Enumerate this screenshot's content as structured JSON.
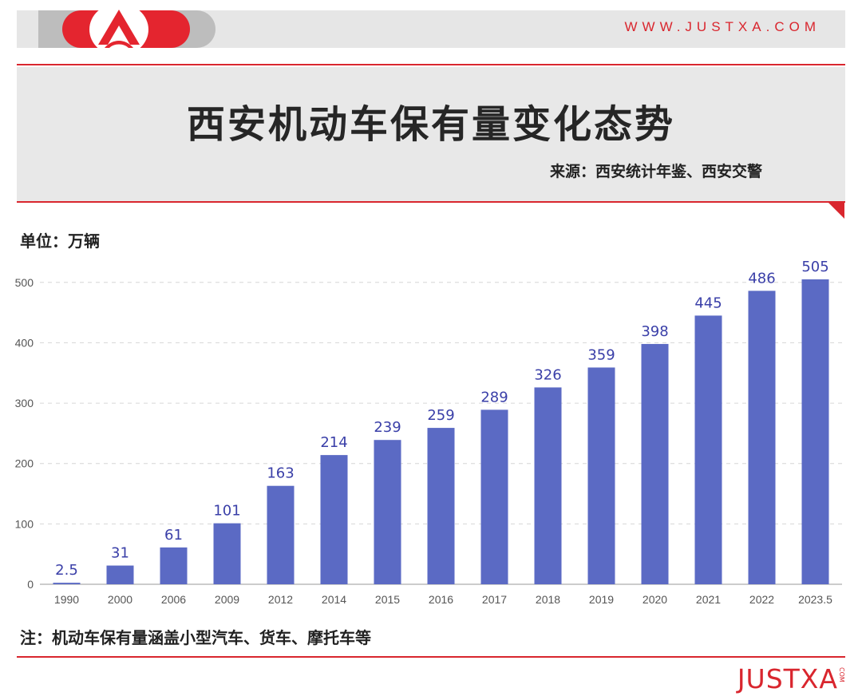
{
  "header": {
    "url": "WWW.JUSTXA.COM",
    "title": "西安机动车保有量变化态势",
    "source": "来源：西安统计年鉴、西安交警"
  },
  "unit_label": "单位：万辆",
  "note": "注：机动车保有量涵盖小型汽车、货车、摩托车等",
  "brand": {
    "name": "JUSTXA",
    "suffix": "COM"
  },
  "colors": {
    "accent": "#d9262e",
    "bar": "#5b6ac4",
    "label": "#3a3fa8"
  },
  "chart_data": {
    "type": "bar",
    "categories": [
      "1990",
      "2000",
      "2006",
      "2009",
      "2012",
      "2014",
      "2015",
      "2016",
      "2017",
      "2018",
      "2019",
      "2020",
      "2021",
      "2022",
      "2023.5"
    ],
    "values": [
      2.5,
      31,
      61,
      101,
      163,
      214,
      239,
      259,
      289,
      326,
      359,
      398,
      445,
      486,
      505
    ],
    "value_labels": [
      "2.5",
      "31",
      "61",
      "101",
      "163",
      "214",
      "239",
      "259",
      "289",
      "326",
      "359",
      "398",
      "445",
      "486",
      "505"
    ],
    "title": "西安机动车保有量变化态势",
    "ylabel": "单位：万辆",
    "yticks": [
      0,
      100,
      200,
      300,
      400,
      500
    ],
    "ylim": [
      0,
      505
    ],
    "grid": true,
    "legend": "none"
  }
}
